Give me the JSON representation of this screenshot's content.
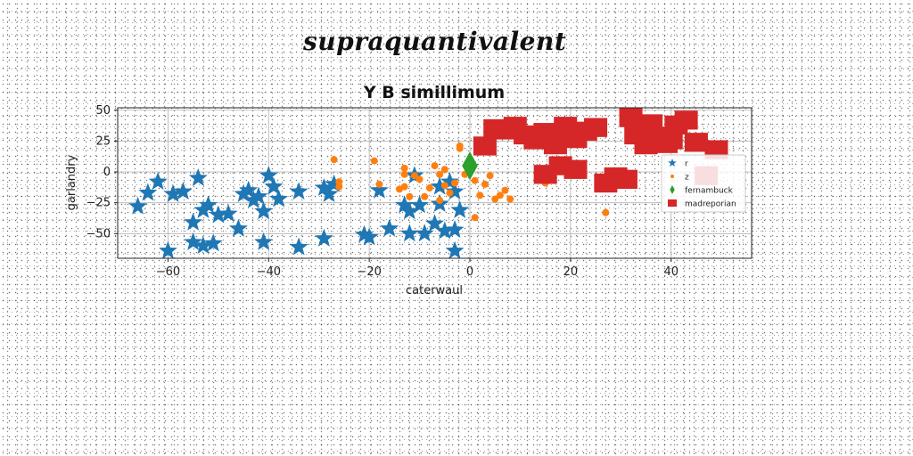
{
  "suptitle": "supraquantivalent",
  "chart_data": {
    "type": "scatter",
    "title": "Y B simillimum",
    "xlabel": "caterwaul",
    "ylabel": "garlandry",
    "xlim": [
      -70,
      56
    ],
    "ylim": [
      -70,
      52
    ],
    "xticks": [
      -60,
      -40,
      -20,
      0,
      20,
      40
    ],
    "yticks": [
      -50,
      -25,
      0,
      25,
      50
    ],
    "xtick_labels": [
      "−60",
      "−40",
      "−20",
      "0",
      "20",
      "40"
    ],
    "ytick_labels": [
      "−50",
      "−25",
      "0",
      "25",
      "50"
    ],
    "grid": true,
    "legend_position": "right",
    "series": [
      {
        "name": "r",
        "marker": "star",
        "color": "#1f77b4",
        "x": [
          -66,
          -64,
          -62,
          -59,
          -57,
          -55,
          -54,
          -53,
          -52,
          -50,
          -48,
          -46,
          -44,
          -43,
          -42,
          -41,
          -40,
          -39,
          -38,
          -34,
          -29,
          -28,
          -27,
          -60,
          -55,
          -53,
          -51,
          -45,
          -41,
          -34,
          -29,
          -21,
          -20,
          -18,
          -16,
          -13,
          -12,
          -12,
          -11,
          -10,
          -9,
          -7,
          -6,
          -5,
          -3,
          -3,
          -3,
          -2,
          -4,
          -6
        ],
        "y": [
          -28,
          -17,
          -8,
          -18,
          -16,
          -41,
          -5,
          -31,
          -27,
          -35,
          -34,
          -46,
          -15,
          -23,
          -20,
          -32,
          -3,
          -12,
          -22,
          -16,
          -13,
          -18,
          -10,
          -64,
          -57,
          -60,
          -58,
          -18,
          -57,
          -61,
          -54,
          -51,
          -53,
          -15,
          -46,
          -27,
          -32,
          -50,
          -3,
          -27,
          -50,
          -42,
          -26,
          -48,
          -16,
          -47,
          -64,
          -31,
          -8,
          -12
        ]
      },
      {
        "name": "z",
        "marker": "circle",
        "color": "#ff7f0e",
        "x": [
          -13,
          -13,
          -12,
          -11,
          -10,
          -9,
          -8,
          -7,
          -6,
          -6,
          -5,
          -5,
          -4,
          -3,
          -2,
          -2,
          -1,
          1,
          1,
          2,
          3,
          4,
          5,
          6,
          7,
          8,
          -18,
          -19,
          -13,
          -14,
          -26,
          -26,
          -27,
          27,
          15
        ],
        "y": [
          -12,
          -2,
          -20,
          -3,
          -6,
          -20,
          -13,
          5,
          -23,
          -2,
          -11,
          2,
          -17,
          -9,
          19,
          21,
          -2,
          -7,
          -37,
          -19,
          -10,
          -3,
          -22,
          -19,
          -15,
          -22,
          -10,
          9,
          3,
          -14,
          -8,
          -12,
          10,
          -33,
          -9
        ]
      },
      {
        "name": "fernambuck",
        "marker": "diamond",
        "color": "#2ca02c",
        "x": [
          0
        ],
        "y": [
          5
        ]
      },
      {
        "name": "madreporian",
        "marker": "square",
        "color": "#d62728",
        "x": [
          3,
          5,
          7,
          9,
          11,
          13,
          15,
          17,
          19,
          21,
          23,
          25,
          27,
          29,
          31,
          33,
          35,
          37,
          39,
          41,
          43,
          45,
          47,
          49,
          15,
          18,
          21,
          32,
          36,
          40
        ],
        "y": [
          21,
          35,
          34,
          37,
          30,
          26,
          32,
          22,
          37,
          27,
          33,
          36,
          -9,
          -4,
          -6,
          30,
          22,
          29,
          23,
          38,
          42,
          24,
          -3,
          18,
          -2,
          5,
          2,
          44,
          39,
          26
        ]
      }
    ]
  }
}
